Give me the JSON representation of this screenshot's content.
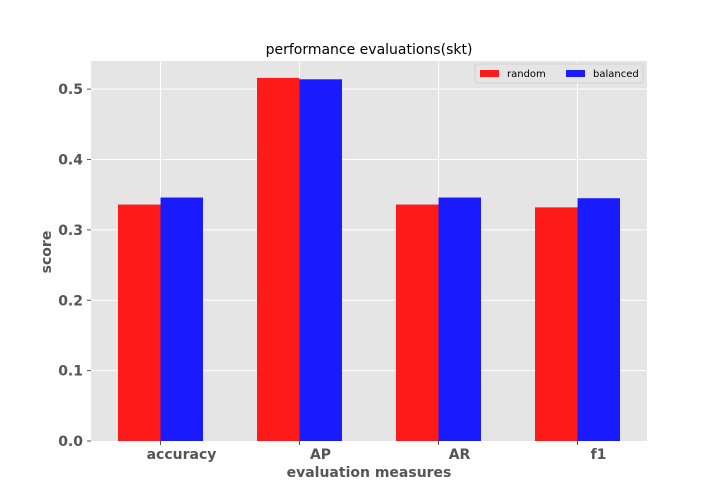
{
  "chart_data": {
    "type": "bar",
    "title": "performance evaluations(skt)",
    "xlabel": "evaluation measures",
    "ylabel": "score",
    "categories": [
      "accuracy",
      "AP",
      "AR",
      "f1"
    ],
    "series": [
      {
        "name": "random",
        "color": "#ff1a1a",
        "values": [
          0.336,
          0.516,
          0.336,
          0.332
        ]
      },
      {
        "name": "balanced",
        "color": "#1a1aff",
        "values": [
          0.346,
          0.514,
          0.346,
          0.345
        ]
      }
    ],
    "ylim": [
      0,
      0.54
    ],
    "yticks": [
      0.0,
      0.1,
      0.2,
      0.3,
      0.4,
      0.5
    ],
    "ytick_labels": [
      "0.0",
      "0.1",
      "0.2",
      "0.3",
      "0.4",
      "0.5"
    ],
    "grid": true,
    "legend_position": "top-right",
    "background": "#e5e5e5"
  }
}
